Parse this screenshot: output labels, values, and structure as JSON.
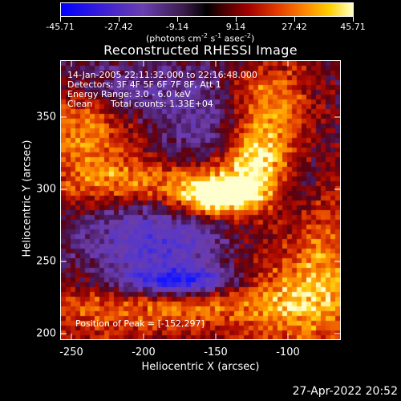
{
  "colorbar": {
    "tick_labels": [
      "-45.71",
      "-27.42",
      "-9.14",
      "9.14",
      "27.42",
      "45.71"
    ],
    "units_prefix": "(photons cm",
    "units_exp1": "-2",
    "units_mid1": " s",
    "units_exp2": "-1",
    "units_mid2": " asec",
    "units_exp3": "-2",
    "units_suffix": ")"
  },
  "title": "Reconstructed RHESSI Image",
  "overlay": {
    "line1": "14-Jan-2005 22:11:32.000 to 22:16:48.000",
    "line2": "Detectors: 3F 4F 5F 6F 7F 8F, Att 1",
    "line3": "Energy Range: 3.0 - 6.0 keV",
    "line4_left": "Clean",
    "line4_right": "Total counts: 1.33E+04",
    "peak": "Position of Peak = [-152,297]"
  },
  "axes": {
    "xlabel": "Heliocentric X (arcsec)",
    "ylabel": "Heliocentric Y (arcsec)",
    "x_ticks": [
      "-250",
      "-200",
      "-150",
      "-100"
    ],
    "y_ticks": [
      "350",
      "300",
      "250",
      "200"
    ]
  },
  "timestamp": "27-Apr-2022 20:52"
}
